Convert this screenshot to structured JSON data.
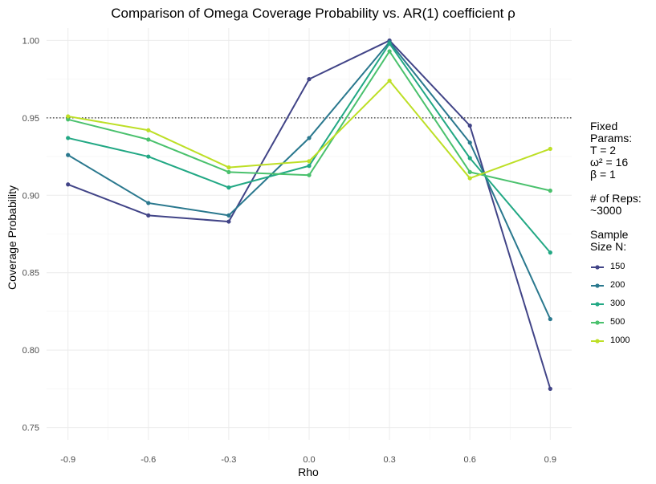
{
  "chart_data": {
    "type": "line",
    "title": "Comparison of Omega Coverage Probability vs. AR(1) coefficient ρ",
    "xlabel": "Rho",
    "ylabel": "Coverage Probability",
    "x_ticks": [
      "-0.9",
      "-0.6",
      "-0.3",
      "0.0",
      "0.3",
      "0.6",
      "0.9"
    ],
    "y_ticks": [
      "0.75",
      "0.80",
      "0.85",
      "0.90",
      "0.95",
      "1.00"
    ],
    "xlim": [
      -0.98,
      0.98
    ],
    "ylim": [
      0.742,
      1.008
    ],
    "reference_line": 0.95,
    "grid": true,
    "legend_position": "right",
    "series": [
      {
        "name": "150",
        "color": "#414487",
        "width": 2.0,
        "x": [
          -0.9,
          -0.6,
          -0.3,
          0.0,
          0.3,
          0.6,
          0.9
        ],
        "y": [
          0.907,
          0.887,
          0.883,
          0.975,
          1.0,
          0.945,
          0.775
        ]
      },
      {
        "name": "200",
        "color": "#2a788e",
        "width": 2.0,
        "x": [
          -0.9,
          -0.6,
          -0.3,
          0.0,
          0.3,
          0.6,
          0.9
        ],
        "y": [
          0.926,
          0.895,
          0.887,
          0.937,
          0.999,
          0.934,
          0.82
        ]
      },
      {
        "name": "300",
        "color": "#22a884",
        "width": 2.0,
        "x": [
          -0.9,
          -0.6,
          -0.3,
          0.0,
          0.3,
          0.6,
          0.9
        ],
        "y": [
          0.937,
          0.925,
          0.905,
          0.919,
          0.998,
          0.924,
          0.863
        ]
      },
      {
        "name": "500",
        "color": "#4ac16d",
        "width": 2.0,
        "x": [
          -0.9,
          -0.6,
          -0.3,
          0.0,
          0.3,
          0.6,
          0.9
        ],
        "y": [
          0.949,
          0.936,
          0.915,
          0.913,
          0.993,
          0.915,
          0.903
        ]
      },
      {
        "name": "1000",
        "color": "#bddf26",
        "width": 2.0,
        "x": [
          -0.9,
          -0.6,
          -0.3,
          0.0,
          0.3,
          0.6,
          0.9
        ],
        "y": [
          0.951,
          0.942,
          0.918,
          0.922,
          0.974,
          0.911,
          0.93
        ]
      }
    ]
  },
  "legend": {
    "params_text": "Fixed\nParams:\nT = 2\nω² = 16\nβ = 1",
    "reps_text": "# of Reps:\n~3000",
    "sample_title": "Sample\nSize N:"
  }
}
